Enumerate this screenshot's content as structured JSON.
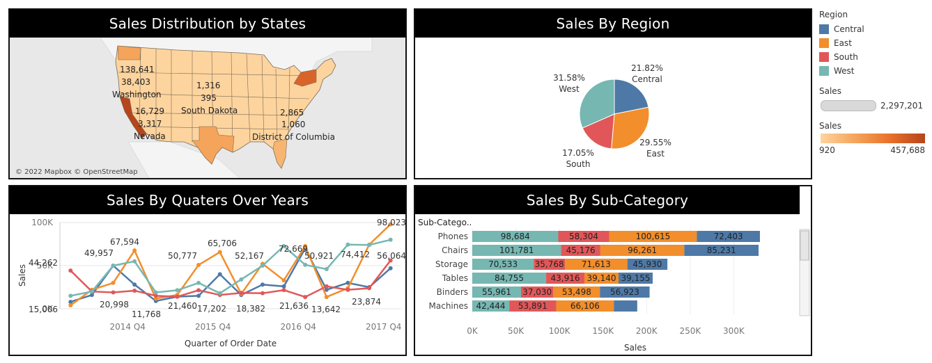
{
  "colors": {
    "central": "#4e79a7",
    "east": "#f28e2b",
    "south": "#e15759",
    "west": "#76b7b2",
    "map_low": "#fdd49e",
    "map_high": "#b5451b"
  },
  "panels": {
    "map_title": "Sales Distribution by States",
    "pie_title": "Sales By Region",
    "line_title": "Sales By Quaters Over Years",
    "bar_title": "Sales By Sub-Category"
  },
  "map": {
    "attribution": "© 2022 Mapbox © OpenStreetMap",
    "labels": [
      {
        "text": "138,641"
      },
      {
        "text": "38,403"
      },
      {
        "text": "Washington"
      },
      {
        "text": "1,316"
      },
      {
        "text": "395"
      },
      {
        "text": "South Dakota"
      },
      {
        "text": "16,729"
      },
      {
        "text": "3,317"
      },
      {
        "text": "Nevada"
      },
      {
        "text": "2,865"
      },
      {
        "text": "1,060"
      },
      {
        "text": "District of Columbia"
      }
    ]
  },
  "legend": {
    "region_title": "Region",
    "regions": [
      "Central",
      "East",
      "South",
      "West"
    ],
    "size_title": "Sales",
    "size_max": "2,297,201",
    "color_title": "Sales",
    "color_min": "920",
    "color_max": "457,688"
  },
  "chart_data": [
    {
      "type": "pie",
      "title": "Sales By Region",
      "slices": [
        {
          "name": "Central",
          "value": 21.82,
          "label": "21.82%"
        },
        {
          "name": "East",
          "value": 29.55,
          "label": "29.55%"
        },
        {
          "name": "South",
          "value": 17.05,
          "label": "17.05%"
        },
        {
          "name": "West",
          "value": 31.58,
          "label": "31.58%"
        }
      ]
    },
    {
      "type": "line",
      "title": "Sales By Quaters Over Years",
      "xlabel": "Quarter of Order Date",
      "ylabel": "Sales",
      "ylim": [
        0,
        100000
      ],
      "yticks": [
        {
          "v": 0,
          "t": "0K"
        },
        {
          "v": 50000,
          "t": "50K"
        },
        {
          "v": 100000,
          "t": "100K"
        }
      ],
      "xticks": [
        {
          "i": 3,
          "t": "2014 Q4"
        },
        {
          "i": 7,
          "t": "2015 Q4"
        },
        {
          "i": 11,
          "t": "2016 Q4"
        },
        {
          "i": 15,
          "t": "2017 Q4"
        }
      ],
      "x": [
        "2014 Q1",
        "2014 Q2",
        "2014 Q3",
        "2014 Q4",
        "2015 Q1",
        "2015 Q2",
        "2015 Q3",
        "2015 Q4",
        "2016 Q1",
        "2016 Q2",
        "2016 Q3",
        "2016 Q4",
        "2017 Q1",
        "2017 Q2",
        "2017 Q3",
        "2017 Q4"
      ],
      "series": [
        {
          "name": "Central",
          "values": [
            8000,
            16000,
            50000,
            28000,
            9000,
            14000,
            15000,
            40000,
            16000,
            28000,
            26000,
            70000,
            22000,
            30000,
            25000,
            47000
          ]
        },
        {
          "name": "East",
          "values": [
            4000,
            22000,
            30000,
            67594,
            11768,
            16000,
            50777,
            65706,
            17202,
            52167,
            33000,
            72669,
            13642,
            23874,
            74412,
            98023
          ]
        },
        {
          "name": "South",
          "values": [
            44262,
            20000,
            19000,
            20998,
            15006,
            14000,
            21460,
            16000,
            18382,
            18000,
            21636,
            13642,
            26000,
            22000,
            23874,
            56064
          ]
        },
        {
          "name": "West",
          "values": [
            15006,
            20000,
            49957,
            55000,
            19000,
            21460,
            30000,
            18000,
            34000,
            50000,
            72669,
            50921,
            46000,
            74412,
            74000,
            80000
          ]
        }
      ],
      "labels": [
        {
          "text": "44,262"
        },
        {
          "text": "15,006"
        },
        {
          "text": "49,957"
        },
        {
          "text": "67,594"
        },
        {
          "text": "20,998"
        },
        {
          "text": "11,768"
        },
        {
          "text": "50,777"
        },
        {
          "text": "65,706"
        },
        {
          "text": "21,460"
        },
        {
          "text": "17,202"
        },
        {
          "text": "18,382"
        },
        {
          "text": "52,167"
        },
        {
          "text": "72,669"
        },
        {
          "text": "50,921"
        },
        {
          "text": "21,636"
        },
        {
          "text": "13,642"
        },
        {
          "text": "74,412"
        },
        {
          "text": "98,023"
        },
        {
          "text": "56,064"
        },
        {
          "text": "23,874"
        }
      ]
    },
    {
      "type": "bar",
      "title": "Sales By Sub-Category",
      "orientation": "horizontal",
      "stacked": true,
      "xlabel": "Sales",
      "ylabel": "Sub-Catego..",
      "xlim": [
        0,
        350000
      ],
      "xticks": [
        {
          "v": 0,
          "t": "0K"
        },
        {
          "v": 50000,
          "t": "50K"
        },
        {
          "v": 100000,
          "t": "100K"
        },
        {
          "v": 150000,
          "t": "150K"
        },
        {
          "v": 200000,
          "t": "200K"
        },
        {
          "v": 250000,
          "t": "250K"
        },
        {
          "v": 300000,
          "t": "300K"
        }
      ],
      "categories": [
        "Phones",
        "Chairs",
        "Storage",
        "Tables",
        "Binders",
        "Machines"
      ],
      "series": [
        {
          "name": "West",
          "values": [
            98684,
            101781,
            70533,
            84755,
            55961,
            42444
          ],
          "labels": [
            "98,684",
            "101,781",
            "70,533",
            "84,755",
            "55,961",
            "42,444"
          ]
        },
        {
          "name": "South",
          "values": [
            58304,
            45176,
            35768,
            43916,
            37030,
            53891
          ],
          "labels": [
            "58,304",
            "45,176",
            "35,768",
            "43,916",
            "37,030",
            "53,891"
          ]
        },
        {
          "name": "East",
          "values": [
            100615,
            96261,
            71613,
            39140,
            53498,
            66106
          ],
          "labels": [
            "100,615",
            "96,261",
            "71,613",
            "39,140",
            "53,498",
            "66,106"
          ]
        },
        {
          "name": "Central",
          "values": [
            72403,
            85231,
            45930,
            39155,
            56923,
            26800
          ],
          "labels": [
            "72,403",
            "85,231",
            "45,930",
            "39,155",
            "56,923",
            ""
          ]
        }
      ]
    }
  ]
}
